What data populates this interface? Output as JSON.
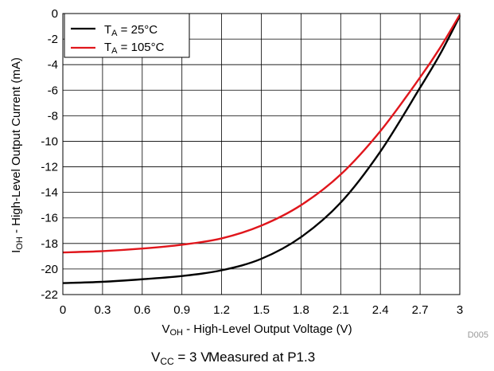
{
  "chart_data": {
    "type": "line",
    "xlabel": {
      "main": "V",
      "sub": "OH",
      "rest": " - High-Level Output Voltage (V)"
    },
    "ylabel": {
      "main": "I",
      "sub": "OH",
      "rest": " - High-Level Output Current (mA)"
    },
    "xlim": [
      0,
      3
    ],
    "ylim": [
      -22,
      0
    ],
    "x_ticks": [
      0,
      0.3,
      0.6,
      0.9,
      1.2,
      1.5,
      1.8,
      2.1,
      2.4,
      2.7,
      3
    ],
    "x_tick_labels": [
      "0",
      "0.3",
      "0.6",
      "0.9",
      "1.2",
      "1.5",
      "1.8",
      "2.1",
      "2.4",
      "2.7",
      "3"
    ],
    "y_ticks": [
      0,
      -2,
      -4,
      -6,
      -8,
      -10,
      -12,
      -14,
      -16,
      -18,
      -20,
      -22
    ],
    "y_tick_labels": [
      "0",
      "-2",
      "-4",
      "-6",
      "-8",
      "-10",
      "-12",
      "-14",
      "-16",
      "-18",
      "-20",
      "-22"
    ],
    "grid": true,
    "legend_position": "top-left",
    "series": [
      {
        "name": {
          "main": "T",
          "sub": "A",
          "rest": " = 25°C"
        },
        "color": "#000000",
        "x": [
          0,
          0.3,
          0.6,
          0.9,
          1.2,
          1.5,
          1.8,
          2.1,
          2.4,
          2.7,
          2.85,
          3.0
        ],
        "y": [
          -21.1,
          -21.0,
          -20.8,
          -20.55,
          -20.1,
          -19.2,
          -17.5,
          -14.8,
          -10.8,
          -5.8,
          -3.2,
          -0.2
        ]
      },
      {
        "name": {
          "main": "T",
          "sub": "A",
          "rest": " = 105°C"
        },
        "color": "#e0161c",
        "x": [
          0,
          0.3,
          0.6,
          0.9,
          1.2,
          1.5,
          1.8,
          2.1,
          2.4,
          2.7,
          2.85,
          3.0
        ],
        "y": [
          -18.7,
          -18.6,
          -18.4,
          -18.1,
          -17.6,
          -16.6,
          -15.0,
          -12.6,
          -9.2,
          -5.0,
          -2.7,
          -0.1
        ]
      }
    ]
  },
  "figure_id": "D005",
  "caption": {
    "vcc_main": "V",
    "vcc_sub": "CC",
    "vcc_rest": " = 3 V",
    "measured": "Measured at P1.3"
  }
}
